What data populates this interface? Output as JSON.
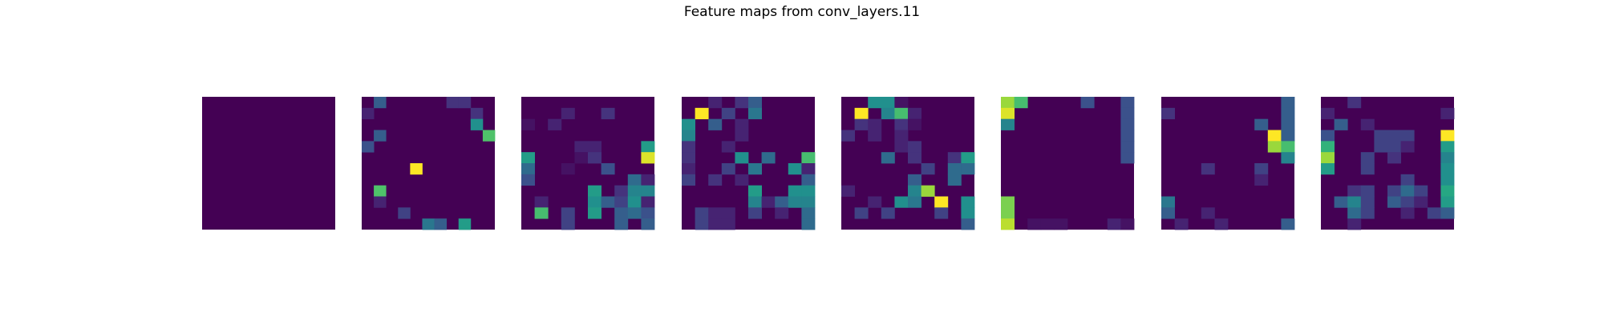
{
  "chart_data": {
    "type": "heatmap",
    "title": "Feature maps from conv_layers.11",
    "colormap": "viridis",
    "colors": {
      "low": "#440154",
      "mid": "#21918c",
      "high": "#fde725"
    },
    "grid": false,
    "axes": "off",
    "maps": [
      {
        "values": [
          [
            0,
            0,
            0,
            0,
            0,
            0,
            0,
            0,
            0,
            0
          ],
          [
            0,
            0,
            0,
            0,
            0,
            0,
            0,
            0,
            0,
            0
          ],
          [
            0,
            0,
            0,
            0,
            0,
            0,
            0,
            0,
            0,
            0
          ],
          [
            0,
            0,
            0,
            0,
            0,
            0,
            0,
            0,
            0,
            0
          ],
          [
            0,
            0,
            0,
            0,
            0,
            0,
            0,
            0,
            0,
            0
          ],
          [
            0,
            0,
            0,
            0,
            0,
            0,
            0,
            0,
            0,
            0
          ],
          [
            0,
            0,
            0,
            0,
            0,
            0,
            0,
            0,
            0,
            0
          ],
          [
            0,
            0,
            0,
            0,
            0,
            0,
            0,
            0,
            0,
            0
          ],
          [
            0,
            0,
            0,
            0,
            0,
            0,
            0,
            0,
            0,
            0
          ],
          [
            0,
            0,
            0,
            0,
            0,
            0,
            0,
            0,
            0,
            0
          ]
        ]
      },
      {
        "values": [
          [
            0,
            0.3,
            0,
            0,
            0,
            0,
            0,
            0.15,
            0.15,
            0
          ],
          [
            0.1,
            0,
            0,
            0,
            0,
            0,
            0,
            0,
            0,
            0.15
          ],
          [
            0,
            0,
            0,
            0,
            0,
            0,
            0,
            0,
            0,
            0.5,
            0
          ],
          [
            0,
            0.3,
            0,
            0,
            0,
            0,
            0,
            0,
            0,
            0,
            0.72
          ],
          [
            0.25,
            0,
            0,
            0,
            0,
            0,
            0,
            0,
            0,
            0
          ],
          [
            0,
            0,
            0,
            0,
            0,
            0,
            0,
            0,
            0,
            0
          ],
          [
            0,
            0,
            0,
            0,
            1,
            0,
            0,
            0,
            0,
            0
          ],
          [
            0,
            0,
            0,
            0,
            0,
            0,
            0,
            0,
            0,
            0
          ],
          [
            0,
            0.72,
            0,
            0,
            0,
            0,
            0,
            0,
            0,
            0
          ],
          [
            0,
            0.1,
            0,
            0,
            0,
            0,
            0,
            0,
            0,
            0
          ],
          [
            0,
            0,
            0,
            0.2,
            0,
            0,
            0,
            0,
            0,
            0
          ],
          [
            0,
            0,
            0,
            0,
            0,
            0.4,
            0.3,
            0,
            0.55,
            0
          ]
        ]
      },
      {
        "values": [
          [
            0,
            0,
            0,
            0,
            0,
            0,
            0,
            0,
            0,
            0
          ],
          [
            0,
            0,
            0,
            0.1,
            0,
            0,
            0.15,
            0,
            0,
            0
          ],
          [
            0.05,
            0,
            0.1,
            0,
            0,
            0,
            0,
            0,
            0,
            0
          ],
          [
            0,
            0,
            0,
            0,
            0,
            0,
            0,
            0,
            0,
            0
          ],
          [
            0,
            0,
            0,
            0,
            0.1,
            0.1,
            0,
            0,
            0,
            0.55
          ],
          [
            0.55,
            0,
            0,
            0,
            0.05,
            0.15,
            0,
            0,
            0,
            0.95
          ],
          [
            0.35,
            0,
            0,
            0.05,
            0,
            0,
            0.25,
            0,
            0,
            0
          ],
          [
            0.25,
            0,
            0,
            0,
            0,
            0,
            0,
            0,
            0.35,
            0.1
          ],
          [
            0,
            0,
            0,
            0,
            0,
            0.55,
            0,
            0.15,
            0.45,
            0.45
          ],
          [
            0,
            0.1,
            0,
            0,
            0,
            0.5,
            0.3,
            0.2,
            0.5,
            0.1
          ],
          [
            0,
            0.7,
            0,
            0.2,
            0,
            0.55,
            0,
            0.3,
            0.35,
            0.25
          ],
          [
            0,
            0,
            0,
            0.2,
            0,
            0,
            0,
            0.3,
            0,
            0.3
          ]
        ]
      },
      {
        "values": [
          [
            0,
            0,
            0.1,
            0,
            0.15,
            0.3,
            0,
            0,
            0,
            0
          ],
          [
            0,
            1,
            0,
            0.2,
            0,
            0.4,
            0,
            0,
            0,
            0
          ],
          [
            0.5,
            0,
            0.3,
            0,
            0.1,
            0,
            0,
            0,
            0,
            0
          ],
          [
            0.45,
            0,
            0,
            0,
            0.1,
            0,
            0,
            0,
            0,
            0
          ],
          [
            0.15,
            0,
            0,
            0.1,
            0,
            0,
            0,
            0,
            0,
            0
          ],
          [
            0.15,
            0,
            0,
            0,
            0.5,
            0,
            0.35,
            0,
            0,
            0.7
          ],
          [
            0.1,
            0,
            0,
            0.2,
            0,
            0.4,
            0,
            0,
            0.5,
            0.1
          ],
          [
            0.2,
            0,
            0.15,
            0,
            0.1,
            0,
            0,
            0,
            0,
            0.3
          ],
          [
            0,
            0,
            0,
            0,
            0,
            0.55,
            0,
            0,
            0.5,
            0.5
          ],
          [
            0,
            0,
            0,
            0,
            0,
            0.45,
            0.1,
            0.3,
            0.45,
            0.45
          ],
          [
            0,
            0.2,
            0.1,
            0.1,
            0,
            0.2,
            0,
            0.1,
            0,
            0.35
          ],
          [
            0,
            0.2,
            0.1,
            0.1,
            0,
            0,
            0,
            0,
            0,
            0.35
          ]
        ]
      },
      {
        "values": [
          [
            0,
            0,
            0.5,
            0.5,
            0.05,
            0,
            0,
            0,
            0,
            0
          ],
          [
            0,
            1,
            0,
            0.45,
            0.7,
            0.1,
            0,
            0,
            0,
            0
          ],
          [
            0,
            0.15,
            0.1,
            0,
            0.15,
            0.05,
            0,
            0,
            0,
            0
          ],
          [
            0.15,
            0,
            0.1,
            0,
            0.1,
            0,
            0,
            0,
            0,
            0
          ],
          [
            0,
            0,
            0,
            0,
            0.1,
            0.15,
            0,
            0,
            0,
            0
          ],
          [
            0,
            0,
            0,
            0.35,
            0,
            0.15,
            0,
            0,
            0.15,
            0.55
          ],
          [
            0,
            0,
            0,
            0,
            0,
            0,
            0.2,
            0,
            0.35,
            0.35
          ],
          [
            0,
            0,
            0,
            0,
            0,
            0.3,
            0,
            0,
            0.35,
            0
          ],
          [
            0.1,
            0,
            0,
            0,
            0,
            0.45,
            0.85,
            0,
            0,
            0
          ],
          [
            0,
            0,
            0.1,
            0,
            0.5,
            0.4,
            0,
            1,
            0,
            0.5
          ],
          [
            0,
            0.2,
            0,
            0.2,
            0,
            0,
            0,
            0.2,
            0,
            0.5
          ],
          [
            0,
            0,
            0,
            0,
            0,
            0,
            0,
            0,
            0,
            0.3
          ]
        ]
      },
      {
        "values": [
          [
            0.85,
            0.7,
            0,
            0,
            0,
            0,
            0.25,
            0,
            0,
            0.25
          ],
          [
            0.95,
            0,
            0,
            0,
            0,
            0,
            0,
            0,
            0,
            0.25
          ],
          [
            0.45,
            0,
            0,
            0,
            0,
            0,
            0,
            0,
            0,
            0.25
          ],
          [
            0,
            0,
            0,
            0,
            0,
            0,
            0,
            0,
            0,
            0.25
          ],
          [
            0,
            0,
            0,
            0,
            0,
            0,
            0,
            0,
            0,
            0.25
          ],
          [
            0,
            0,
            0,
            0,
            0,
            0,
            0,
            0,
            0,
            0.25
          ],
          [
            0,
            0,
            0,
            0,
            0,
            0,
            0,
            0,
            0,
            0
          ],
          [
            0,
            0,
            0,
            0,
            0,
            0,
            0,
            0,
            0,
            0
          ],
          [
            0,
            0,
            0,
            0,
            0,
            0,
            0,
            0,
            0,
            0
          ],
          [
            0.8,
            0,
            0,
            0,
            0,
            0,
            0,
            0,
            0,
            0
          ],
          [
            0.8,
            0,
            0,
            0,
            0,
            0,
            0,
            0,
            0,
            0
          ],
          [
            0.9,
            0,
            0.05,
            0.05,
            0.05,
            0,
            0,
            0,
            0.1,
            0.05
          ]
        ]
      },
      {
        "values": [
          [
            0,
            0,
            0,
            0,
            0,
            0,
            0,
            0,
            0,
            0.3
          ],
          [
            0.15,
            0,
            0,
            0,
            0,
            0,
            0,
            0,
            0,
            0.3
          ],
          [
            0,
            0,
            0,
            0,
            0,
            0,
            0,
            0.3,
            0,
            0.3
          ],
          [
            0,
            0,
            0,
            0,
            0,
            0,
            0,
            0,
            1,
            0.3
          ],
          [
            0,
            0,
            0,
            0,
            0,
            0,
            0,
            0,
            0.85,
            0.7
          ],
          [
            0,
            0,
            0,
            0,
            0,
            0,
            0,
            0,
            0,
            0.45
          ],
          [
            0,
            0,
            0,
            0.15,
            0,
            0,
            0,
            0.2,
            0,
            0
          ],
          [
            0,
            0,
            0,
            0,
            0,
            0,
            0,
            0.1,
            0,
            0
          ],
          [
            0,
            0,
            0,
            0,
            0,
            0,
            0,
            0,
            0,
            0
          ],
          [
            0.4,
            0,
            0,
            0,
            0,
            0,
            0,
            0,
            0,
            0
          ],
          [
            0.3,
            0,
            0,
            0.1,
            0,
            0,
            0,
            0,
            0,
            0
          ],
          [
            0,
            0.1,
            0,
            0,
            0.1,
            0,
            0,
            0,
            0,
            0.3
          ]
        ]
      },
      {
        "values": [
          [
            0,
            0,
            0.15,
            0,
            0,
            0,
            0,
            0,
            0,
            0
          ],
          [
            0.1,
            0,
            0,
            0,
            0,
            0,
            0,
            0,
            0,
            0.1
          ],
          [
            0,
            0.3,
            0,
            0.1,
            0,
            0,
            0,
            0,
            0,
            0
          ],
          [
            0.25,
            0,
            0,
            0,
            0.2,
            0.2,
            0.2,
            0,
            0,
            1
          ],
          [
            0.65,
            0,
            0,
            0,
            0.2,
            0.2,
            0.1,
            0,
            0,
            0.55
          ],
          [
            0.85,
            0,
            0,
            0.2,
            0,
            0.15,
            0,
            0,
            0,
            0.45
          ],
          [
            0.55,
            0,
            0,
            0.2,
            0,
            0,
            0,
            0,
            0,
            0.5
          ],
          [
            0,
            0,
            0,
            0,
            0,
            0,
            0.2,
            0,
            0,
            0.5
          ],
          [
            0,
            0,
            0.15,
            0.2,
            0,
            0.2,
            0.35,
            0.2,
            0,
            0.6
          ],
          [
            0,
            0.3,
            0.45,
            0.2,
            0,
            0.3,
            0.2,
            0.1,
            0,
            0.55
          ],
          [
            0,
            0,
            0.35,
            0.2,
            0,
            0,
            0.1,
            0,
            0.2,
            0.3
          ],
          [
            0,
            0,
            0.1,
            0,
            0,
            0,
            0,
            0,
            0,
            0
          ]
        ]
      }
    ]
  }
}
